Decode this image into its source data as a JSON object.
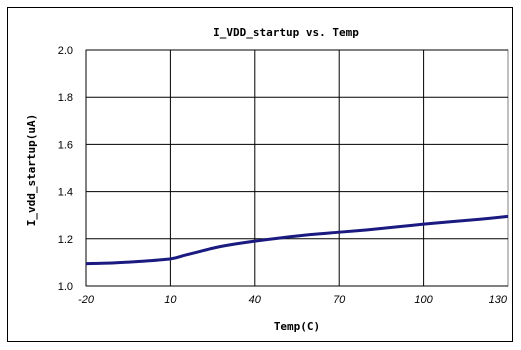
{
  "chart_data": {
    "type": "line",
    "title": "I_VDD_startup vs. Temp",
    "xlabel": "Temp(C)",
    "ylabel": "I_vdd_startup(uA)",
    "xlim": [
      -20,
      130
    ],
    "ylim": [
      1.0,
      2.0
    ],
    "x_ticks": [
      "-20",
      "10",
      "40",
      "70",
      "100",
      "130"
    ],
    "y_ticks": [
      "1.0",
      "1.2",
      "1.4",
      "1.6",
      "1.8",
      "2.0"
    ],
    "grid": true,
    "legend": "none",
    "series": [
      {
        "color": "#1a1a80",
        "x": [
          -20,
          -10,
          0,
          10,
          15,
          20,
          25,
          30,
          40,
          50,
          60,
          70,
          80,
          90,
          100,
          110,
          120,
          130
        ],
        "y": [
          1.095,
          1.098,
          1.105,
          1.115,
          1.13,
          1.145,
          1.16,
          1.172,
          1.19,
          1.205,
          1.218,
          1.228,
          1.238,
          1.25,
          1.262,
          1.273,
          1.283,
          1.295
        ]
      }
    ]
  },
  "colors": {
    "plot_border": "#808080",
    "grid": "#000000",
    "line": "#1a1a80"
  }
}
